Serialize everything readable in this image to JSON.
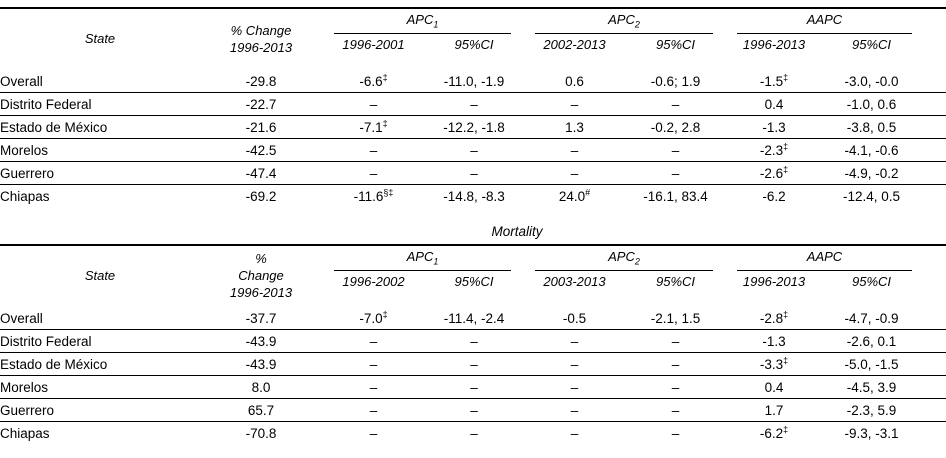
{
  "tables": [
    {
      "title": "",
      "header": {
        "state_label": "State",
        "pct_lines": [
          "% Change",
          "1996-2013",
          ""
        ],
        "groups": [
          {
            "name": "APC",
            "sub": "1",
            "period": "1996-2001",
            "ci": "95%CI"
          },
          {
            "name": "APC",
            "sub": "2",
            "period": "2002-2013",
            "ci": "95%CI"
          },
          {
            "name": "AAPC",
            "sub": "",
            "period": "1996-2013",
            "ci": "95%CI"
          }
        ]
      },
      "rows": [
        {
          "state": "Overall",
          "pct": "-29.8",
          "pct_sup": "",
          "apc1": "-6.6",
          "apc1_sup": "‡",
          "apc1_ci": "-11.0, -1.9",
          "apc2": "0.6",
          "apc2_sup": "",
          "apc2_ci": "-0.6; 1.9",
          "aapc": "-1.5",
          "aapc_sup": "‡",
          "aapc_ci": "-3.0, -0.0"
        },
        {
          "state": "Distrito Federal",
          "pct": "-22.7",
          "pct_sup": "",
          "apc1": "–",
          "apc1_sup": "",
          "apc1_ci": "–",
          "apc2": "–",
          "apc2_sup": "",
          "apc2_ci": "–",
          "aapc": "0.4",
          "aapc_sup": "",
          "aapc_ci": "-1.0, 0.6"
        },
        {
          "state": "Estado de México",
          "pct": "-21.6",
          "pct_sup": "",
          "apc1": "-7.1",
          "apc1_sup": "‡",
          "apc1_ci": "-12.2, -1.8",
          "apc2": "1.3",
          "apc2_sup": "",
          "apc2_ci": "-0.2, 2.8",
          "aapc": "-1.3",
          "aapc_sup": "",
          "aapc_ci": "-3.8, 0.5"
        },
        {
          "state": "Morelos",
          "pct": "-42.5",
          "pct_sup": "",
          "apc1": "–",
          "apc1_sup": "",
          "apc1_ci": "–",
          "apc2": "–",
          "apc2_sup": "",
          "apc2_ci": "–",
          "aapc": "-2.3",
          "aapc_sup": "‡",
          "aapc_ci": "-4.1, -0.6"
        },
        {
          "state": "Guerrero",
          "pct": "-47.4",
          "pct_sup": "",
          "apc1": "–",
          "apc1_sup": "",
          "apc1_ci": "–",
          "apc2": "–",
          "apc2_sup": "",
          "apc2_ci": "–",
          "aapc": "-2.6",
          "aapc_sup": "‡",
          "aapc_ci": "-4.9, -0.2"
        },
        {
          "state": "Chiapas",
          "pct": "-69.2",
          "pct_sup": "",
          "apc1": "-11.6",
          "apc1_sup": "§‡",
          "apc1_ci": "-14.8, -8.3",
          "apc2": "24.0",
          "apc2_sup": "#",
          "apc2_ci": "-16.1, 83.4",
          "aapc": "-6.2",
          "aapc_sup": "",
          "aapc_ci": "-12.4, 0.5"
        }
      ]
    },
    {
      "title": "Mortality",
      "header": {
        "state_label": "State",
        "pct_lines": [
          "%",
          "Change",
          "1996-2013"
        ],
        "groups": [
          {
            "name": "APC",
            "sub": "1",
            "period": "1996-2002",
            "ci": "95%CI"
          },
          {
            "name": "APC",
            "sub": "2",
            "period": "2003-2013",
            "ci": "95%CI"
          },
          {
            "name": "AAPC",
            "sub": "",
            "period": "1996-2013",
            "ci": "95%CI"
          }
        ]
      },
      "rows": [
        {
          "state": "Overall",
          "pct": "-37.7",
          "pct_sup": "",
          "apc1": "-7.0",
          "apc1_sup": "‡",
          "apc1_ci": "-11.4, -2.4",
          "apc2": "-0.5",
          "apc2_sup": "",
          "apc2_ci": "-2.1, 1.5",
          "aapc": "-2.8",
          "aapc_sup": "‡",
          "aapc_ci": "-4.7, -0.9"
        },
        {
          "state": "Distrito Federal",
          "pct": "-43.9",
          "pct_sup": "",
          "apc1": "–",
          "apc1_sup": "",
          "apc1_ci": "–",
          "apc2": "–",
          "apc2_sup": "",
          "apc2_ci": "–",
          "aapc": "-1.3",
          "aapc_sup": "",
          "aapc_ci": "-2.6, 0.1"
        },
        {
          "state": "Estado de México",
          "pct": "-43.9",
          "pct_sup": "",
          "apc1": "–",
          "apc1_sup": "",
          "apc1_ci": "–",
          "apc2": "–",
          "apc2_sup": "",
          "apc2_ci": "–",
          "aapc": "-3.3",
          "aapc_sup": "‡",
          "aapc_ci": "-5.0, -1.5"
        },
        {
          "state": "Morelos",
          "pct": "8.0",
          "pct_sup": "",
          "apc1": "–",
          "apc1_sup": "",
          "apc1_ci": "–",
          "apc2": "–",
          "apc2_sup": "",
          "apc2_ci": "–",
          "aapc": "0.4",
          "aapc_sup": "",
          "aapc_ci": "-4.5, 3.9"
        },
        {
          "state": "Guerrero",
          "pct": "65.7",
          "pct_sup": "",
          "apc1": "–",
          "apc1_sup": "",
          "apc1_ci": "–",
          "apc2": "–",
          "apc2_sup": "",
          "apc2_ci": "–",
          "aapc": "1.7",
          "aapc_sup": "",
          "aapc_ci": "-2.3, 5.9"
        },
        {
          "state": "Chiapas",
          "pct": "-70.8",
          "pct_sup": "",
          "apc1": "–",
          "apc1_sup": "",
          "apc1_ci": "–",
          "apc2": "–",
          "apc2_sup": "",
          "apc2_ci": "–",
          "aapc": "-6.2",
          "aapc_sup": "‡",
          "aapc_ci": "-9.3, -3.1"
        }
      ]
    }
  ]
}
